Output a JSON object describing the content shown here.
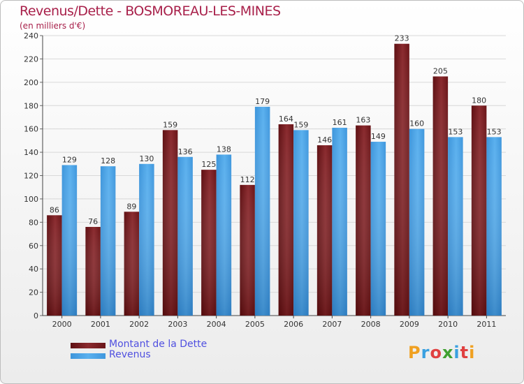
{
  "header": {
    "title": "Revenus/Dette - BOSMOREAU-LES-MINES",
    "subtitle": "(en milliers d'€)"
  },
  "colors": {
    "dette": "#7b2226",
    "revenus": "#4aa0e0",
    "title": "#a8204a"
  },
  "legend": {
    "dette_label": "Montant de la Dette",
    "revenus_label": "Revenus"
  },
  "logo": {
    "text": "Proxiti",
    "letters": [
      "P",
      "r",
      "o",
      "x",
      "i",
      "t",
      "i"
    ],
    "letter_colors": [
      "#f0a020",
      "#3aa0e0",
      "#e04040",
      "#40a030",
      "#3aa0e0",
      "#e04040",
      "#f0a020"
    ]
  },
  "chart_data": {
    "type": "bar",
    "categories": [
      "2000",
      "2001",
      "2002",
      "2003",
      "2004",
      "2005",
      "2006",
      "2007",
      "2008",
      "2009",
      "2010",
      "2011"
    ],
    "series": [
      {
        "name": "Montant de la Dette",
        "values": [
          86,
          76,
          89,
          159,
          125,
          112,
          164,
          146,
          163,
          233,
          205,
          180
        ]
      },
      {
        "name": "Revenus",
        "values": [
          129,
          128,
          130,
          136,
          138,
          179,
          159,
          161,
          149,
          160,
          153,
          153
        ]
      }
    ],
    "title": "Revenus/Dette - BOSMOREAU-LES-MINES",
    "ylabel": "(en milliers d'€)",
    "ylim": [
      0,
      240
    ],
    "yticks": [
      0,
      20,
      40,
      60,
      80,
      100,
      120,
      140,
      160,
      180,
      200,
      220,
      240
    ],
    "grid": true,
    "legend_position": "bottom-left"
  }
}
